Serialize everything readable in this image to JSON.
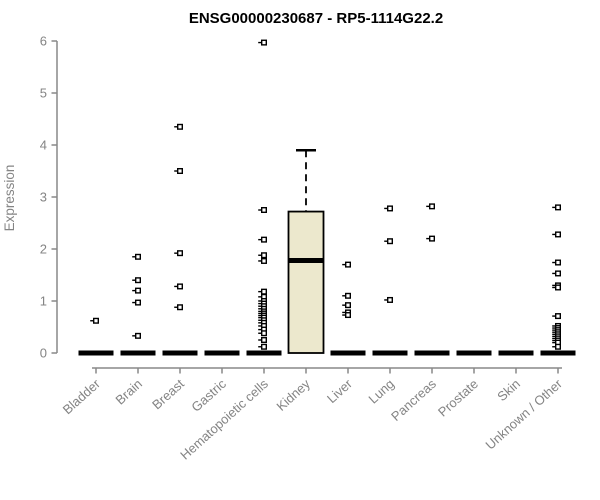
{
  "chart_data": {
    "type": "boxplot",
    "title": "ENSG00000230687 - RP5-1114G22.2",
    "ylabel": "Expression",
    "xlabel": "",
    "ylim": [
      0,
      6
    ],
    "yticks": [
      0,
      1,
      2,
      3,
      4,
      5,
      6
    ],
    "grid": false,
    "legend_position": "none",
    "categories": [
      "Bladder",
      "Brain",
      "Breast",
      "Gastric",
      "Hematopoietic cells",
      "Kidney",
      "Liver",
      "Lung",
      "Pancreas",
      "Prostate",
      "Skin",
      "Unknown / Other"
    ],
    "boxes": [
      {
        "category": "Bladder",
        "q1": 0,
        "median": 0,
        "q3": 0,
        "whisker_low": 0,
        "whisker_high": 0,
        "outliers": [
          0.62
        ]
      },
      {
        "category": "Brain",
        "q1": 0,
        "median": 0,
        "q3": 0,
        "whisker_low": 0,
        "whisker_high": 0,
        "outliers": [
          1.85,
          1.4,
          1.2,
          0.97,
          0.33
        ]
      },
      {
        "category": "Breast",
        "q1": 0,
        "median": 0,
        "q3": 0,
        "whisker_low": 0,
        "whisker_high": 0,
        "outliers": [
          4.35,
          3.5,
          1.92,
          1.28,
          0.88
        ]
      },
      {
        "category": "Gastric",
        "q1": 0,
        "median": 0,
        "q3": 0,
        "whisker_low": 0,
        "whisker_high": 0,
        "outliers": []
      },
      {
        "category": "Hematopoietic cells",
        "q1": 0,
        "median": 0,
        "q3": 0,
        "whisker_low": 0,
        "whisker_high": 0,
        "outliers": [
          5.97,
          2.75,
          2.18,
          1.88,
          1.77,
          1.18,
          1.08,
          1.0,
          0.95,
          0.9,
          0.85,
          0.8,
          0.76,
          0.72,
          0.68,
          0.63,
          0.58,
          0.52,
          0.45,
          0.38,
          0.25,
          0.12
        ]
      },
      {
        "category": "Kidney",
        "q1": 0,
        "median": 1.78,
        "q3": 2.72,
        "whisker_low": 0,
        "whisker_high": 3.9,
        "outliers": []
      },
      {
        "category": "Liver",
        "q1": 0,
        "median": 0,
        "q3": 0,
        "whisker_low": 0,
        "whisker_high": 0,
        "outliers": [
          1.7,
          1.1,
          0.92,
          0.78,
          0.73
        ]
      },
      {
        "category": "Lung",
        "q1": 0,
        "median": 0,
        "q3": 0,
        "whisker_low": 0,
        "whisker_high": 0,
        "outliers": [
          2.78,
          2.15,
          1.02
        ]
      },
      {
        "category": "Pancreas",
        "q1": 0,
        "median": 0,
        "q3": 0,
        "whisker_low": 0,
        "whisker_high": 0,
        "outliers": [
          2.82,
          2.2
        ]
      },
      {
        "category": "Prostate",
        "q1": 0,
        "median": 0,
        "q3": 0,
        "whisker_low": 0,
        "whisker_high": 0,
        "outliers": []
      },
      {
        "category": "Skin",
        "q1": 0,
        "median": 0,
        "q3": 0,
        "whisker_low": 0,
        "whisker_high": 0,
        "outliers": []
      },
      {
        "category": "Unknown / Other",
        "q1": 0,
        "median": 0,
        "q3": 0,
        "whisker_low": 0,
        "whisker_high": 0,
        "outliers": [
          2.8,
          2.28,
          1.74,
          1.53,
          1.3,
          1.26,
          0.71,
          0.52,
          0.48,
          0.44,
          0.4,
          0.36,
          0.32,
          0.28,
          0.24,
          0.2,
          0.12
        ]
      }
    ],
    "colors": {
      "background": "#ffffff",
      "title": "#000000",
      "axis": "#888888",
      "tick_label": "#848484",
      "box_fill": "#ece8cd",
      "box_border": "#000000",
      "median": "#000000",
      "collapsed_bar": "#000000",
      "point": "#000000",
      "point_fill": "#ffffff"
    }
  }
}
